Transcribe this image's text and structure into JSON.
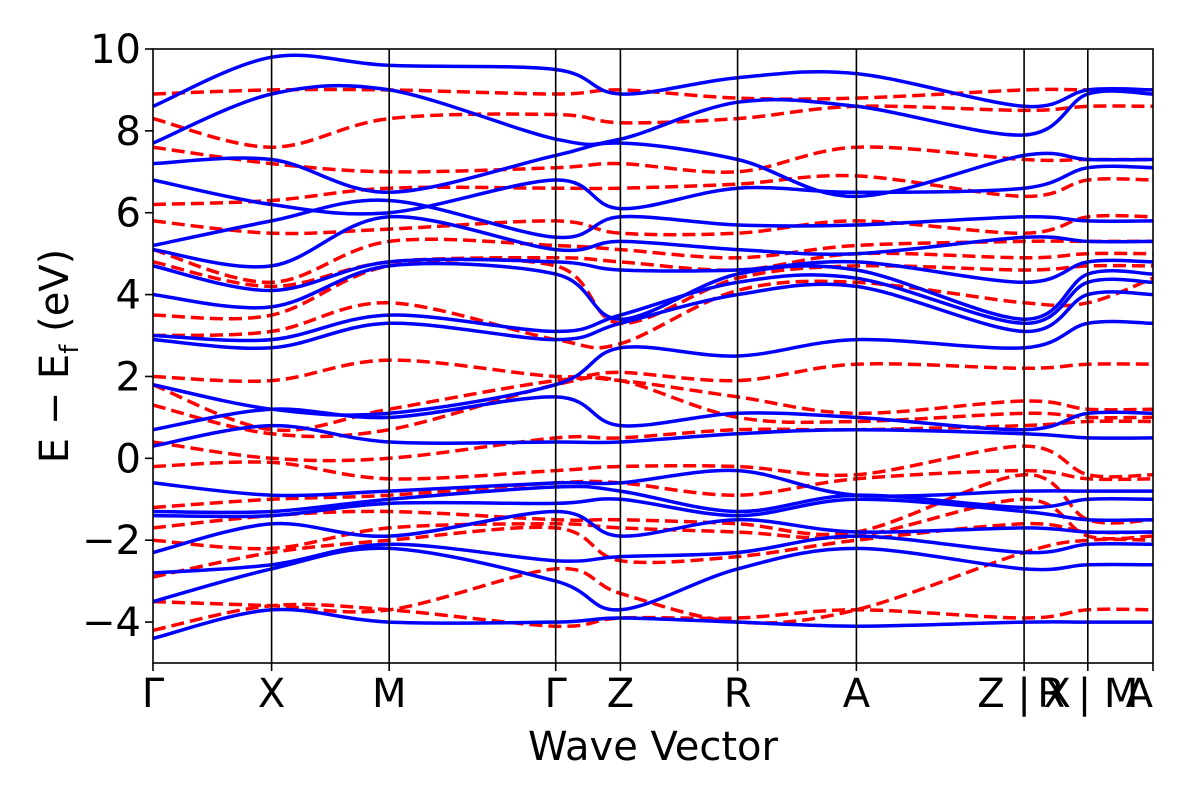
{
  "chart_data": {
    "type": "line",
    "xlabel": "Wave Vector",
    "ylabel_main": "E − E",
    "ylabel_sub": "f",
    "ylabel_unit": " (eV)",
    "ylim": [
      -5,
      10
    ],
    "xlim": [
      0,
      1
    ],
    "yticks": [
      -4,
      -2,
      0,
      2,
      4,
      6,
      8,
      10
    ],
    "ytick_labels": [
      "−4",
      "−2",
      "0",
      "2",
      "4",
      "6",
      "8",
      "10"
    ],
    "kpoints": [
      {
        "x": 0.0,
        "label": "Γ"
      },
      {
        "x": 0.1186,
        "label": "X"
      },
      {
        "x": 0.2362,
        "label": "M"
      },
      {
        "x": 0.4027,
        "label": "Γ"
      },
      {
        "x": 0.4674,
        "label": "Z"
      },
      {
        "x": 0.5846,
        "label": "R"
      },
      {
        "x": 0.7034,
        "label": "A"
      },
      {
        "x": 0.8711,
        "label": "Z | X"
      },
      {
        "x": 0.9348,
        "label": "R | M"
      },
      {
        "x": 1.0,
        "label": "A"
      }
    ],
    "series": [
      {
        "style": "dashed",
        "color": "#ff0000",
        "bands": [
          [
            -4.2,
            -3.6,
            -3.7,
            -4.1,
            -3.9,
            -3.9,
            -3.7,
            -3.9,
            -3.7,
            -3.7
          ],
          [
            -3.5,
            -3.6,
            -3.7,
            -2.7,
            -3.3,
            -4.0,
            -3.7,
            -2.3,
            -2.0,
            -2.0
          ],
          [
            -2.9,
            -2.3,
            -2.0,
            -1.7,
            -2.5,
            -2.4,
            -2.0,
            -1.6,
            -1.8,
            -1.8
          ],
          [
            -2.0,
            -2.2,
            -1.7,
            -1.6,
            -1.7,
            -1.8,
            -1.9,
            -1.0,
            -1.9,
            -1.9
          ],
          [
            -1.7,
            -1.4,
            -1.3,
            -1.5,
            -1.5,
            -1.6,
            -1.8,
            -0.4,
            -1.5,
            -1.5
          ],
          [
            -1.2,
            -1.0,
            -0.9,
            -0.6,
            -0.6,
            -0.9,
            -0.5,
            -0.3,
            -0.5,
            -0.5
          ],
          [
            -0.2,
            -0.1,
            -0.5,
            -0.3,
            -0.2,
            -0.2,
            -0.4,
            0.3,
            -0.4,
            -0.4
          ],
          [
            0.4,
            0.0,
            0.0,
            0.5,
            0.5,
            0.7,
            0.7,
            0.8,
            0.9,
            0.9
          ],
          [
            1.3,
            0.6,
            0.7,
            1.8,
            1.9,
            1.0,
            0.9,
            1.1,
            1.0,
            1.0
          ],
          [
            1.8,
            0.7,
            1.2,
            1.9,
            1.9,
            1.5,
            1.1,
            1.4,
            1.2,
            1.2
          ],
          [
            2.0,
            1.9,
            2.4,
            2.0,
            2.1,
            1.9,
            2.3,
            2.2,
            2.3,
            2.3
          ],
          [
            3.0,
            3.1,
            3.8,
            2.9,
            2.8,
            4.1,
            4.3,
            3.8,
            3.8,
            4.4
          ],
          [
            3.5,
            3.5,
            4.7,
            4.7,
            3.3,
            4.4,
            4.7,
            4.6,
            4.7,
            4.7
          ],
          [
            4.8,
            4.2,
            4.8,
            4.9,
            4.8,
            4.6,
            5.0,
            4.9,
            5.0,
            5.0
          ],
          [
            5.1,
            4.3,
            5.3,
            5.2,
            5.1,
            4.9,
            5.2,
            5.3,
            5.3,
            5.3
          ],
          [
            5.8,
            5.5,
            5.6,
            5.8,
            5.5,
            5.5,
            5.8,
            5.5,
            5.9,
            5.9
          ],
          [
            6.2,
            6.3,
            6.6,
            6.6,
            6.6,
            6.7,
            6.9,
            6.4,
            6.8,
            6.8
          ],
          [
            7.6,
            7.2,
            7.0,
            7.1,
            7.2,
            7.0,
            7.6,
            7.3,
            7.3,
            7.3
          ],
          [
            8.3,
            7.6,
            8.3,
            8.4,
            8.2,
            8.3,
            8.6,
            8.5,
            8.6,
            8.6
          ],
          [
            8.9,
            9.0,
            9.0,
            8.9,
            9.0,
            8.8,
            8.8,
            9.0,
            9.0,
            9.0
          ]
        ]
      },
      {
        "style": "solid",
        "color": "#0000ff",
        "bands": [
          [
            -4.4,
            -3.7,
            -4.0,
            -4.0,
            -3.9,
            -4.0,
            -4.1,
            -4.0,
            -4.0,
            -4.0
          ],
          [
            -3.5,
            -2.7,
            -2.2,
            -3.0,
            -3.7,
            -2.7,
            -2.2,
            -2.7,
            -2.6,
            -2.6
          ],
          [
            -2.8,
            -2.6,
            -2.1,
            -2.5,
            -2.4,
            -2.3,
            -1.9,
            -2.3,
            -2.1,
            -2.1
          ],
          [
            -2.3,
            -1.6,
            -1.9,
            -1.3,
            -1.9,
            -1.5,
            -1.8,
            -1.7,
            -1.8,
            -1.8
          ],
          [
            -1.4,
            -1.4,
            -1.1,
            -1.1,
            -1.0,
            -1.4,
            -1.0,
            -1.3,
            -1.5,
            -1.5
          ],
          [
            -1.3,
            -1.3,
            -1.0,
            -0.7,
            -0.8,
            -1.3,
            -0.9,
            -1.2,
            -1.0,
            -1.0
          ],
          [
            -0.6,
            -0.9,
            -0.8,
            -0.6,
            -0.6,
            -0.3,
            -0.9,
            -0.8,
            -0.8,
            -0.8
          ],
          [
            0.3,
            0.8,
            0.4,
            0.4,
            0.4,
            0.6,
            0.7,
            0.6,
            0.5,
            0.5
          ],
          [
            0.7,
            1.2,
            1.0,
            1.5,
            0.8,
            1.1,
            1.0,
            0.7,
            1.1,
            1.1
          ],
          [
            1.8,
            1.2,
            1.1,
            1.8,
            2.7,
            2.5,
            2.9,
            2.7,
            3.3,
            3.3
          ],
          [
            2.9,
            2.7,
            3.3,
            2.9,
            3.3,
            4.0,
            4.2,
            3.1,
            4.0,
            4.0
          ],
          [
            3.0,
            2.9,
            3.5,
            3.1,
            3.5,
            4.3,
            4.4,
            3.3,
            4.3,
            4.3
          ],
          [
            4.0,
            3.7,
            4.7,
            4.5,
            3.4,
            4.5,
            4.6,
            3.4,
            4.5,
            4.5
          ],
          [
            4.7,
            4.1,
            4.8,
            4.8,
            4.6,
            4.6,
            4.8,
            4.3,
            4.8,
            4.8
          ],
          [
            5.1,
            4.7,
            5.9,
            5.1,
            5.3,
            5.1,
            5.0,
            5.4,
            5.3,
            5.3
          ],
          [
            5.2,
            5.8,
            6.3,
            5.4,
            5.9,
            5.7,
            5.7,
            5.9,
            5.8,
            5.8
          ],
          [
            6.8,
            6.2,
            6.0,
            6.8,
            6.1,
            6.6,
            6.5,
            6.6,
            7.1,
            7.1
          ],
          [
            7.2,
            7.3,
            6.5,
            7.4,
            7.7,
            7.3,
            6.4,
            7.4,
            7.3,
            7.3
          ],
          [
            7.7,
            8.9,
            9.0,
            7.8,
            7.8,
            8.7,
            8.6,
            7.9,
            8.9,
            8.9
          ],
          [
            8.6,
            9.8,
            9.6,
            9.5,
            8.9,
            9.3,
            9.4,
            8.6,
            9.0,
            9.0
          ]
        ]
      }
    ]
  }
}
